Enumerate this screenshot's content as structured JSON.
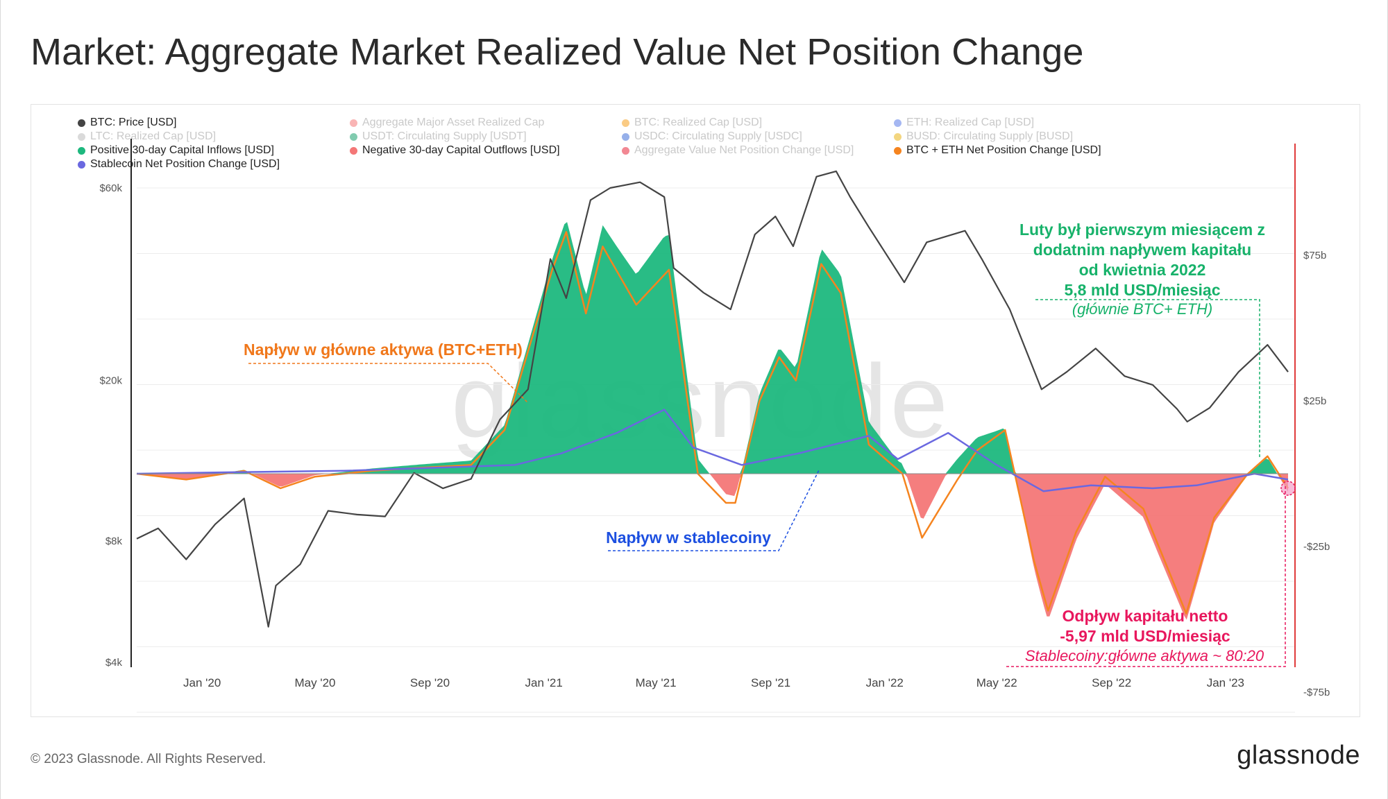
{
  "title": "Market: Aggregate Market Realized Value Net Position Change",
  "footer": {
    "copyright": "© 2023 Glassnode. All Rights Reserved.",
    "brand": "glassnode"
  },
  "watermark": "glassnode",
  "colors": {
    "price": "#444444",
    "inflow": "#1db87e",
    "outflow": "#f47777",
    "btc_eth": "#f5841f",
    "stablecoin": "#6a68e0",
    "zero_axis_right": "#e03b3b",
    "annot_green": "#17b26a",
    "annot_orange": "#f0771a",
    "annot_blue": "#1c4fe0",
    "annot_red": "#e8175d"
  },
  "legend": [
    {
      "label": "BTC: Price [USD]",
      "color": "#444444",
      "active": true
    },
    {
      "label": "Aggregate Major Asset Realized Cap",
      "color": "#f47777",
      "active": false
    },
    {
      "label": "BTC: Realized Cap [USD]",
      "color": "#f5a11f",
      "active": false
    },
    {
      "label": "ETH: Realized Cap [USD]",
      "color": "#5b7be8",
      "active": false
    },
    {
      "label": "LTC: Realized Cap [USD]",
      "color": "#bbbbbb",
      "active": false
    },
    {
      "label": "USDT: Circulating Supply [USDT]",
      "color": "#1aa06e",
      "active": false
    },
    {
      "label": "USDC: Circulating Supply [USDC]",
      "color": "#3f6fd8",
      "active": false
    },
    {
      "label": "BUSD: Circulating Supply [BUSD]",
      "color": "#e9b517",
      "active": false
    },
    {
      "label": "Positive 30-day Capital Inflows [USD]",
      "color": "#1db87e",
      "active": true
    },
    {
      "label": "Negative 30-day Capital Outflows [USD]",
      "color": "#f47777",
      "active": true
    },
    {
      "label": "Aggregate Value Net Position Change [USD]",
      "color": "#e8273a",
      "active": false
    },
    {
      "label": "BTC + ETH Net Position Change [USD]",
      "color": "#f5841f",
      "active": true
    },
    {
      "label": "Stablecoin Net Position Change [USD]",
      "color": "#6a68e0",
      "active": true
    }
  ],
  "annotations": {
    "green": [
      "Luty był pierwszym miesiącem z",
      "dodatnim napływem kapitału",
      "od kwietnia 2022",
      "5,8 mld USD/miesiąc"
    ],
    "green_italic": "(głównie BTC+ ETH)",
    "orange": "Napływ w główne aktywa (BTC+ETH)",
    "blue": "Napływ w stablecoiny",
    "red": [
      "Odpływ kapitału netto",
      "-5,97 mld USD/miesiąc"
    ],
    "red_italic": "Stablecoiny:główne aktywa ~ 80:20"
  },
  "chart_data": {
    "type": "area",
    "x_ticks": [
      "Jan '20",
      "May '20",
      "Sep '20",
      "Jan '21",
      "May '21",
      "Sep '21",
      "Jan '22",
      "May '22",
      "Sep '22",
      "Jan '23"
    ],
    "y_left_ticks": [
      "$60k",
      "$20k",
      "$8k",
      "$4k"
    ],
    "y_left_tick_values": [
      60000,
      20000,
      8000,
      4000
    ],
    "y_left_scale": "log",
    "y_left_range": [
      4000,
      90000
    ],
    "y_right_ticks": [
      "$75b",
      "$25b",
      "-$25b",
      "-$75b"
    ],
    "y_right_tick_values": [
      75,
      25,
      -25,
      -75
    ],
    "y_right_range": [
      -75,
      125
    ],
    "x_range": [
      "2019-10-23",
      "2023-03-09"
    ],
    "series": [
      {
        "name": "BTC: Price [USD]",
        "axis": "left",
        "unit": "USD",
        "x": [
          "2019-10-23",
          "2019-11-15",
          "2019-12-15",
          "2020-01-15",
          "2020-02-15",
          "2020-03-12",
          "2020-03-20",
          "2020-04-15",
          "2020-05-15",
          "2020-06-15",
          "2020-07-15",
          "2020-08-15",
          "2020-09-15",
          "2020-10-15",
          "2020-11-15",
          "2020-12-15",
          "2021-01-08",
          "2021-01-25",
          "2021-02-20",
          "2021-03-13",
          "2021-04-14",
          "2021-05-10",
          "2021-05-20",
          "2021-06-21",
          "2021-07-20",
          "2021-08-15",
          "2021-09-06",
          "2021-09-25",
          "2021-10-20",
          "2021-11-10",
          "2021-11-25",
          "2021-12-15",
          "2022-01-22",
          "2022-02-15",
          "2022-03-28",
          "2022-04-15",
          "2022-05-15",
          "2022-06-18",
          "2022-07-15",
          "2022-08-15",
          "2022-09-15",
          "2022-10-15",
          "2022-11-10",
          "2022-11-21",
          "2022-12-15",
          "2023-01-15",
          "2023-02-15",
          "2023-03-09"
        ],
        "values": [
          8100,
          8600,
          7200,
          8800,
          10200,
          4900,
          6200,
          7000,
          9500,
          9300,
          9200,
          11800,
          10800,
          11400,
          16000,
          19000,
          40000,
          32000,
          56000,
          60000,
          62000,
          57000,
          38000,
          33000,
          30000,
          46000,
          51000,
          43000,
          64000,
          66000,
          57000,
          48000,
          35000,
          44000,
          47000,
          40000,
          30000,
          19000,
          21000,
          24000,
          20500,
          19500,
          17000,
          15800,
          17100,
          21000,
          24500,
          21000
        ]
      },
      {
        "name": "BTC + ETH Net Position Change [USD]",
        "axis": "right",
        "unit": "USD billions",
        "x": [
          "2019-10-23",
          "2019-12-15",
          "2020-02-15",
          "2020-03-25",
          "2020-05-01",
          "2020-07-01",
          "2020-08-20",
          "2020-10-15",
          "2020-11-20",
          "2021-01-10",
          "2021-01-25",
          "2021-02-15",
          "2021-03-05",
          "2021-04-10",
          "2021-05-15",
          "2021-06-15",
          "2021-07-15",
          "2021-07-25",
          "2021-08-20",
          "2021-09-10",
          "2021-09-28",
          "2021-10-25",
          "2021-11-15",
          "2021-12-15",
          "2022-01-20",
          "2022-02-10",
          "2022-03-20",
          "2022-04-10",
          "2022-05-10",
          "2022-06-10",
          "2022-06-25",
          "2022-07-25",
          "2022-08-25",
          "2022-10-05",
          "2022-11-20",
          "2022-12-20",
          "2023-01-25",
          "2023-02-15",
          "2023-03-09"
        ],
        "values": [
          0,
          -2,
          1,
          -5,
          -1,
          1,
          2,
          3,
          15,
          70,
          83,
          55,
          78,
          58,
          70,
          0,
          -10,
          -10,
          25,
          40,
          32,
          72,
          62,
          10,
          0,
          -22,
          -2,
          8,
          15,
          -30,
          -47,
          -20,
          -1,
          -12,
          -48,
          -15,
          0,
          6,
          -5
        ]
      },
      {
        "name": "Stablecoin Net Position Change [USD]",
        "axis": "right",
        "unit": "USD billions",
        "x": [
          "2019-10-23",
          "2020-02-01",
          "2020-06-01",
          "2020-09-01",
          "2020-12-01",
          "2021-01-20",
          "2021-03-20",
          "2021-05-10",
          "2021-06-10",
          "2021-08-01",
          "2021-10-01",
          "2021-12-15",
          "2022-01-15",
          "2022-03-10",
          "2022-05-01",
          "2022-06-20",
          "2022-08-10",
          "2022-10-15",
          "2022-12-01",
          "2023-02-01",
          "2023-03-09"
        ],
        "values": [
          0,
          0.5,
          1,
          2,
          3,
          7,
          14,
          22,
          9,
          3,
          7,
          13,
          5,
          14,
          3,
          -6,
          -4,
          -5,
          -4,
          0,
          -2
        ]
      }
    ],
    "areas": [
      {
        "name": "Positive 30-day Capital Inflows [USD]",
        "sign": "positive",
        "axis": "right"
      },
      {
        "name": "Negative 30-day Capital Outflows [USD]",
        "sign": "negative",
        "axis": "right"
      }
    ]
  }
}
